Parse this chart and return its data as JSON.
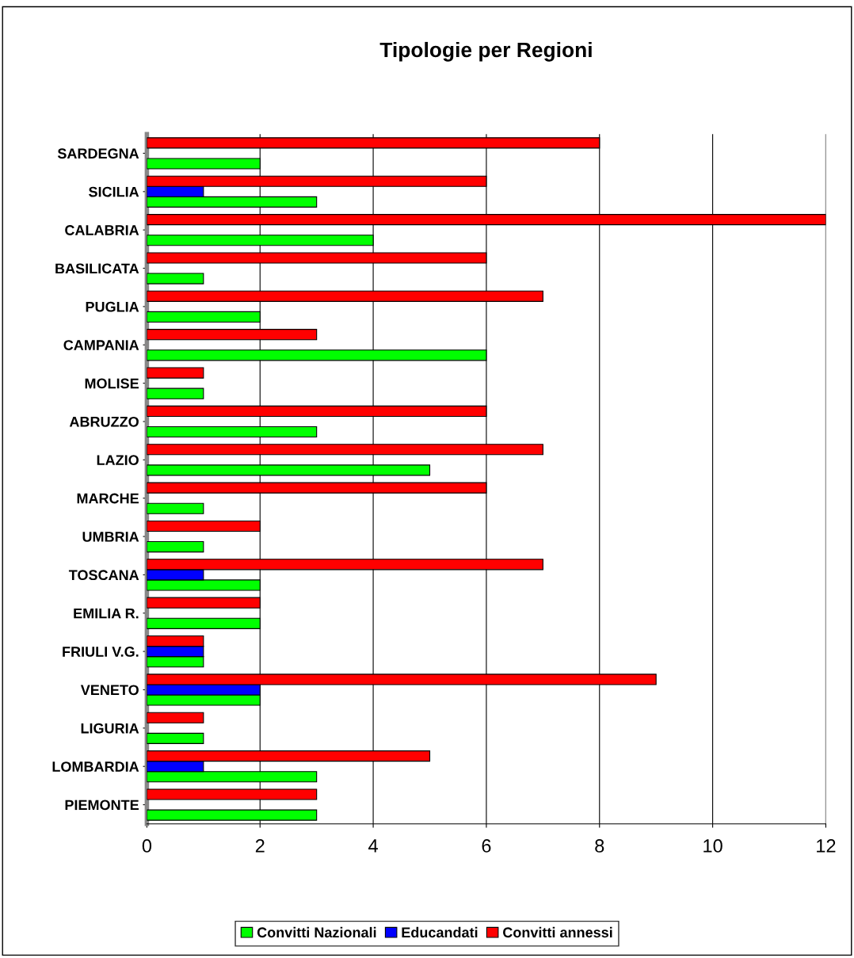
{
  "chart_data": {
    "type": "bar",
    "orientation": "horizontal",
    "title": "Tipologie per Regioni",
    "categories": [
      "SARDEGNA",
      "SICILIA",
      "CALABRIA",
      "BASILICATA",
      "PUGLIA",
      "CAMPANIA",
      "MOLISE",
      "ABRUZZO",
      "LAZIO",
      "MARCHE",
      "UMBRIA",
      "TOSCANA",
      "EMILIA R.",
      "FRIULI V.G.",
      "VENETO",
      "LIGURIA",
      "LOMBARDIA",
      "PIEMONTE"
    ],
    "series": [
      {
        "name": "Convitti Nazionali",
        "color": "#00ff00",
        "values": [
          2,
          3,
          4,
          1,
          2,
          6,
          1,
          3,
          5,
          1,
          1,
          2,
          2,
          1,
          2,
          1,
          3,
          3
        ]
      },
      {
        "name": "Educandati",
        "color": "#0000ff",
        "values": [
          null,
          1,
          null,
          null,
          null,
          null,
          null,
          null,
          null,
          null,
          null,
          1,
          null,
          1,
          2,
          null,
          1,
          null
        ]
      },
      {
        "name": "Convitti annessi",
        "color": "#ff0000",
        "values": [
          8,
          6,
          12,
          6,
          7,
          3,
          1,
          6,
          7,
          6,
          2,
          7,
          2,
          1,
          9,
          1,
          5,
          3
        ]
      }
    ],
    "xlim": [
      0,
      12
    ],
    "xticks": [
      0,
      2,
      4,
      6,
      8,
      10,
      12
    ],
    "grid": "x",
    "legend": "bottom"
  }
}
